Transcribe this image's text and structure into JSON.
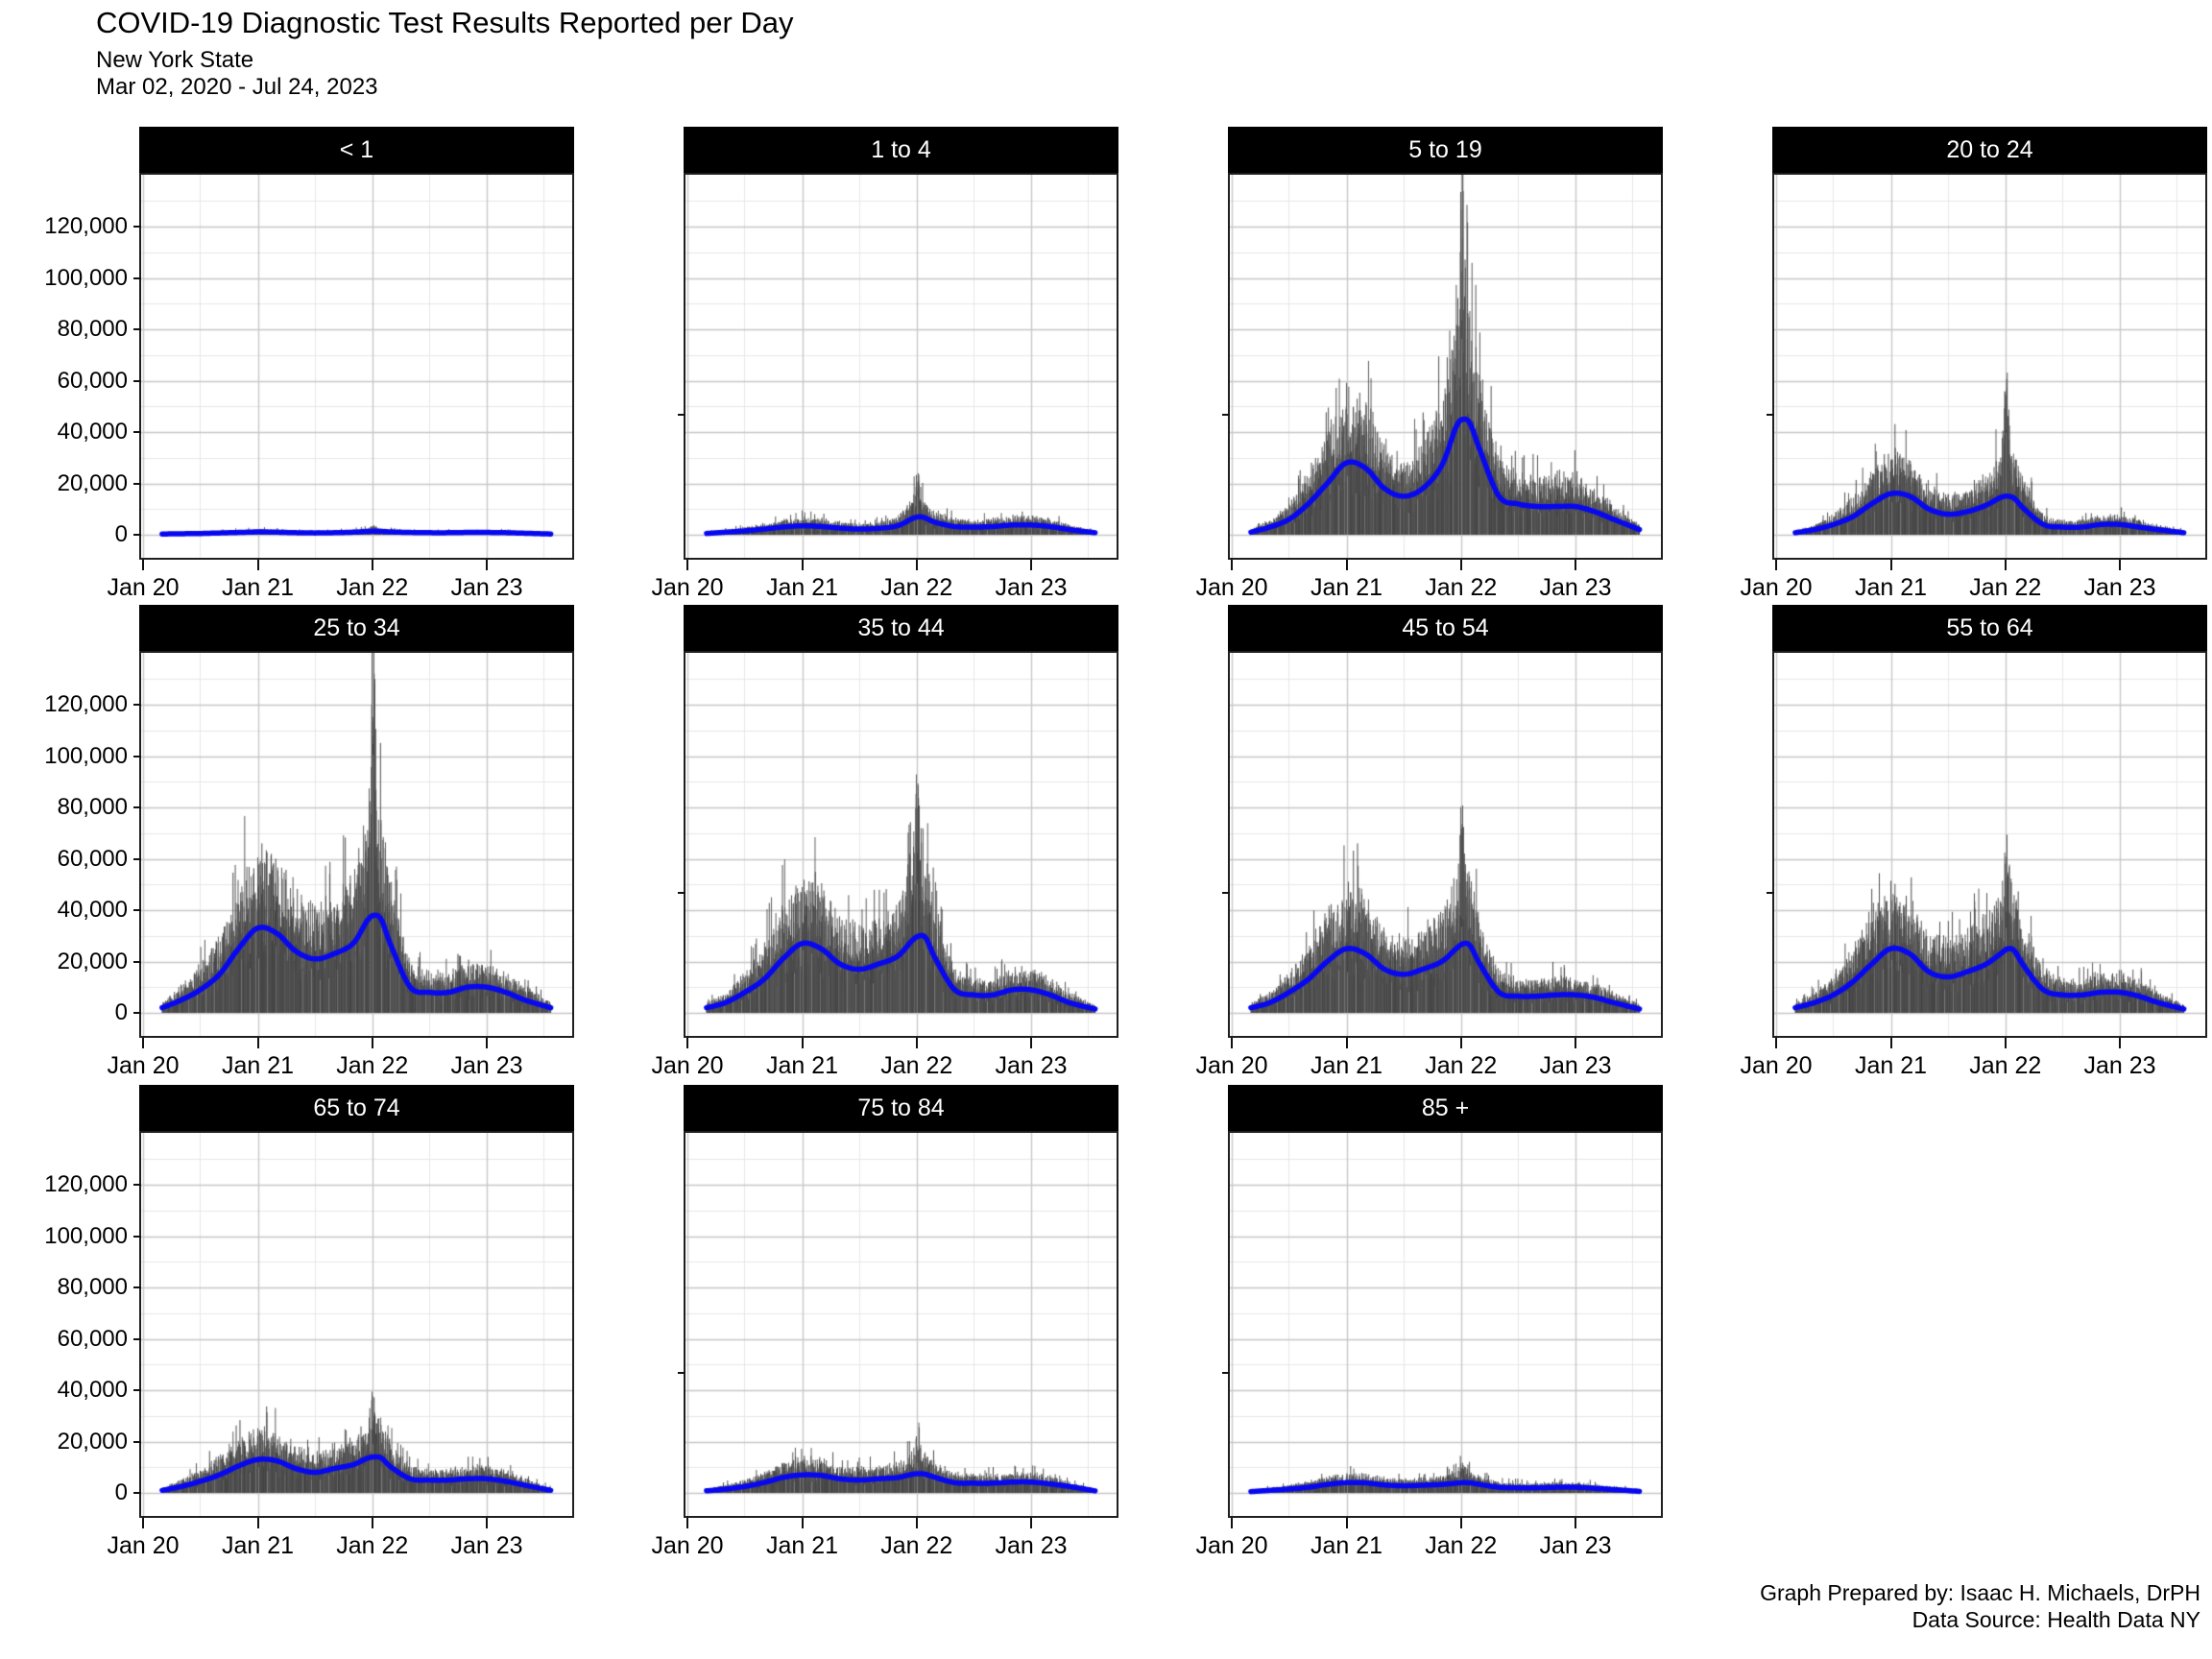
{
  "title": "COVID-19 Diagnostic Test Results Reported per Day",
  "subtitle": {
    "line1": "New York State",
    "line2": "Mar 02, 2020 - Jul 24, 2023"
  },
  "caption": {
    "line1": "Graph Prepared by: Isaac H. Michaels, DrPH",
    "line2": "Data Source: Health Data NY"
  },
  "colors": {
    "bar": "#4a4a4a",
    "bar_light": "#b4b4b4",
    "smooth_line": "#0808f0",
    "strip_bg": "#000000",
    "strip_text": "#ffffff",
    "grid_major": "#c8c8c8",
    "grid_minor": "#e7e7e7",
    "panel_border": "#1f1f1f",
    "axis_text": "#000000"
  },
  "chart_data": {
    "type": "bar",
    "overlay": "loess smooth trend line per facet",
    "title": "COVID-19 Diagnostic Test Results Reported per Day",
    "facet_layout": {
      "rows": 3,
      "cols": 4,
      "n_facets": 11
    },
    "x_axis": {
      "tick_labels": [
        "Jan 20",
        "Jan 21",
        "Jan 22",
        "Jan 23"
      ],
      "date_start": "Mar 02, 2020",
      "date_end": "Jul 24, 2023",
      "minor_gridlines": "mid-year"
    },
    "y_axis": {
      "tick_values": [
        0,
        20000,
        40000,
        60000,
        80000,
        100000,
        120000
      ],
      "tick_labels": [
        "0",
        "20,000",
        "40,000",
        "60,000",
        "80,000",
        "100,000",
        "120,000"
      ],
      "upper_limit_shown": 139000,
      "minor_gridlines": "every 10,000 between majors"
    },
    "units": "diagnostic test results per day; facet series values in thousands",
    "control_points_months_since_jan2020": [
      2,
      4,
      6,
      8,
      10,
      12,
      14,
      16,
      18,
      20,
      22,
      23.5,
      24.3,
      25,
      26,
      28,
      30,
      32,
      34,
      36,
      38,
      40,
      42.8
    ],
    "facets": [
      {
        "label": "< 1",
        "smooth_k": [
          0.3,
          0.4,
          0.5,
          0.7,
          0.9,
          1.1,
          1.0,
          0.8,
          0.7,
          0.8,
          1.0,
          1.3,
          1.4,
          1.3,
          1.1,
          0.9,
          0.8,
          0.8,
          0.9,
          0.9,
          0.8,
          0.6,
          0.3
        ],
        "bar_envelope_k": [
          0.5,
          0.6,
          0.8,
          1.1,
          1.4,
          1.7,
          1.5,
          1.2,
          1.1,
          1.2,
          1.5,
          2.0,
          2.2,
          2.0,
          1.7,
          1.4,
          1.2,
          1.2,
          1.4,
          1.4,
          1.2,
          0.9,
          0.5
        ],
        "jan22_spike_extra_k": 1.0
      },
      {
        "label": "1 to 4",
        "smooth_k": [
          0.5,
          1.0,
          1.5,
          2.2,
          3.0,
          3.5,
          3.2,
          2.6,
          2.2,
          2.5,
          3.5,
          6.2,
          7.0,
          6.4,
          4.8,
          3.2,
          3.0,
          3.2,
          3.8,
          3.8,
          3.2,
          2.0,
          0.8
        ],
        "bar_envelope_k": [
          0.8,
          1.5,
          2.3,
          3.3,
          4.5,
          5.2,
          4.8,
          3.9,
          3.3,
          3.8,
          5.3,
          10.0,
          13.0,
          9.5,
          7.0,
          4.8,
          4.5,
          4.8,
          5.7,
          5.7,
          4.8,
          3.0,
          1.2
        ],
        "jan22_spike_extra_k": 8
      },
      {
        "label": "5 to 19",
        "smooth_k": [
          1,
          3,
          6,
          12,
          20,
          28,
          26,
          18,
          15,
          18,
          27,
          42,
          45,
          43,
          33,
          15,
          12,
          11,
          11,
          11,
          9,
          6,
          2
        ],
        "bar_envelope_k": [
          1.5,
          4.5,
          9,
          18,
          30,
          42,
          39,
          27,
          22,
          27,
          40,
          70,
          78,
          65,
          48,
          22,
          18,
          17,
          18,
          18,
          14,
          9,
          3
        ],
        "jan22_spike_extra_k": 42
      },
      {
        "label": "20 to 24",
        "smooth_k": [
          0.8,
          2,
          4,
          7,
          12,
          16,
          15,
          10,
          8,
          9,
          11.5,
          14.5,
          15,
          14,
          10,
          4,
          3,
          3,
          4,
          4,
          3,
          2,
          0.8
        ],
        "bar_envelope_k": [
          1.2,
          3,
          6,
          11,
          19,
          25,
          23,
          15,
          12,
          14,
          18,
          26,
          32,
          24,
          16,
          6,
          4.5,
          4.5,
          6,
          6,
          4.5,
          3,
          1.2
        ],
        "jan22_spike_extra_k": 26
      },
      {
        "label": "25 to 34",
        "smooth_k": [
          2,
          5,
          9,
          15,
          25,
          33,
          31,
          24,
          21,
          23,
          27,
          36,
          38,
          36,
          26,
          10,
          8,
          8,
          10,
          10,
          8,
          5,
          2
        ],
        "bar_envelope_k": [
          3,
          8,
          14,
          23,
          38,
          50,
          46,
          36,
          31,
          34,
          42,
          60,
          70,
          58,
          40,
          15,
          12,
          12,
          15,
          15,
          12,
          8,
          3
        ],
        "jan22_spike_extra_k": 62
      },
      {
        "label": "35 to 44",
        "smooth_k": [
          2,
          4,
          8,
          13,
          21,
          27,
          25,
          19,
          17,
          19,
          22,
          28,
          30,
          29,
          21,
          9,
          7,
          7,
          9,
          9,
          7,
          4,
          1.5
        ],
        "bar_envelope_k": [
          3,
          6,
          12,
          20,
          32,
          41,
          38,
          28,
          25,
          28,
          33,
          48,
          56,
          46,
          31,
          13,
          10,
          10,
          13,
          13,
          10,
          6,
          2.5
        ],
        "jan22_spike_extra_k": 25
      },
      {
        "label": "45 to 54",
        "smooth_k": [
          2,
          4,
          8,
          13,
          20,
          25,
          23,
          17,
          15,
          17,
          20,
          25,
          27,
          26,
          19,
          8,
          6.5,
          6.5,
          7,
          7,
          6,
          4,
          1.5
        ],
        "bar_envelope_k": [
          3,
          6,
          12,
          20,
          31,
          38,
          35,
          25,
          22,
          25,
          30,
          42,
          50,
          42,
          27,
          12,
          10,
          10,
          11,
          11,
          9,
          6,
          2.5
        ],
        "jan22_spike_extra_k": 18
      },
      {
        "label": "55 to 64",
        "smooth_k": [
          2,
          4,
          7,
          12,
          19,
          25,
          23,
          16,
          14,
          16,
          19,
          23,
          25,
          24,
          18,
          9,
          7,
          7,
          8,
          8,
          6.5,
          4,
          1.5
        ],
        "bar_envelope_k": [
          3,
          6,
          11,
          19,
          30,
          38,
          34,
          24,
          21,
          24,
          28,
          38,
          44,
          38,
          26,
          13,
          10,
          10,
          12,
          12,
          10,
          6,
          2.5
        ],
        "jan22_spike_extra_k": 14
      },
      {
        "label": "65 to 74",
        "smooth_k": [
          1,
          2.5,
          4.5,
          7,
          10.5,
          13,
          12.5,
          9.5,
          8,
          9.5,
          11,
          13.5,
          14,
          13.5,
          10,
          5.5,
          5,
          5,
          5.5,
          5.5,
          4.5,
          3,
          1
        ],
        "bar_envelope_k": [
          1.5,
          4,
          7,
          11,
          16,
          19,
          18,
          14,
          12,
          14,
          16,
          21,
          25,
          21,
          14,
          8,
          7,
          7,
          8,
          8,
          7,
          4.5,
          1.5
        ],
        "jan22_spike_extra_k": 9
      },
      {
        "label": "75 to 84",
        "smooth_k": [
          0.8,
          1.5,
          2.5,
          4,
          6,
          7,
          6.8,
          5.5,
          5,
          5.5,
          6,
          7.2,
          7.5,
          7.2,
          6,
          4,
          3.8,
          3.8,
          4.2,
          4.2,
          3.5,
          2.5,
          0.8
        ],
        "bar_envelope_k": [
          1.2,
          2.5,
          4,
          6,
          9,
          10.5,
          10,
          8,
          7.5,
          8,
          9,
          12,
          14,
          11.5,
          9,
          6,
          5.5,
          5.5,
          6,
          6,
          5,
          3.5,
          1.2
        ],
        "jan22_spike_extra_k": 4.5
      },
      {
        "label": "85 +",
        "smooth_k": [
          0.5,
          1,
          1.5,
          2.2,
          3.3,
          4,
          3.9,
          3.1,
          2.8,
          3,
          3.3,
          3.8,
          4,
          3.9,
          3.3,
          2.2,
          2,
          2,
          2.2,
          2.2,
          1.8,
          1.3,
          0.6
        ],
        "bar_envelope_k": [
          0.8,
          1.6,
          2.4,
          3.5,
          5,
          6,
          5.8,
          4.6,
          4.2,
          4.5,
          5,
          6.5,
          7.5,
          6.5,
          5,
          3.2,
          3,
          3,
          3.2,
          3.2,
          2.7,
          2,
          0.9
        ],
        "jan22_spike_extra_k": 2.5
      }
    ]
  }
}
